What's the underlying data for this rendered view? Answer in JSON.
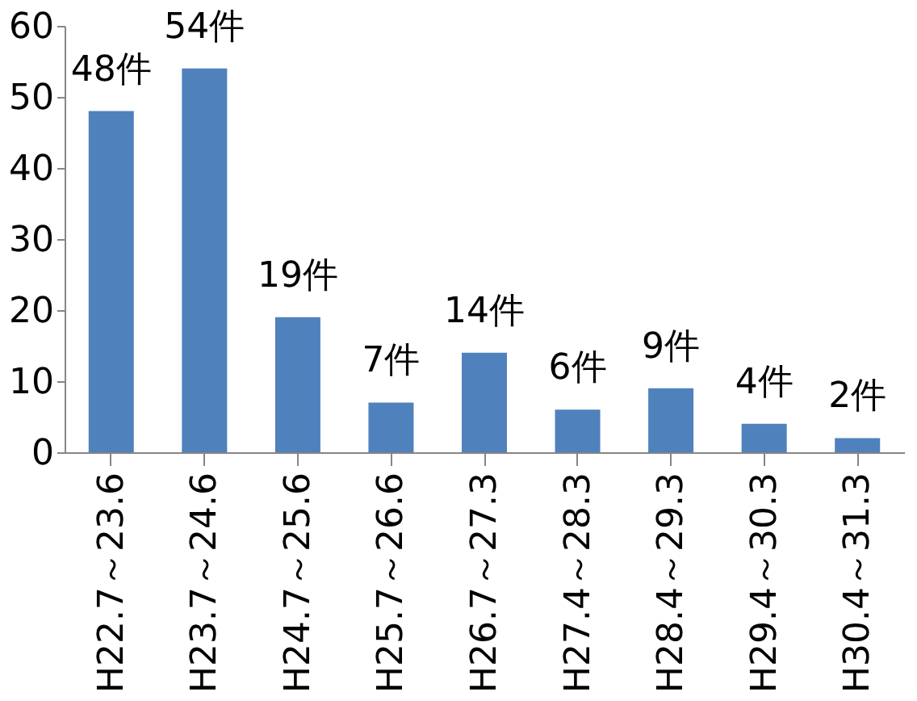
{
  "chart_data": {
    "type": "bar",
    "categories": [
      "H22.7～23.6",
      "H23.7～24.6",
      "H24.7～25.6",
      "H25.7～26.6",
      "H26.7～27.3",
      "H27.4～28.3",
      "H28.4～29.3",
      "H29.4～30.3",
      "H30.4～31.3"
    ],
    "values": [
      48,
      54,
      19,
      7,
      14,
      6,
      9,
      4,
      2
    ],
    "value_labels": [
      "48件",
      "54件",
      "19件",
      "7件",
      "14件",
      "6件",
      "9件",
      "4件",
      "2件"
    ],
    "color": "#4f81bd",
    "ylim": [
      0,
      60
    ],
    "yticks": [
      0,
      10,
      20,
      30,
      40,
      50,
      60
    ],
    "grid": false
  }
}
